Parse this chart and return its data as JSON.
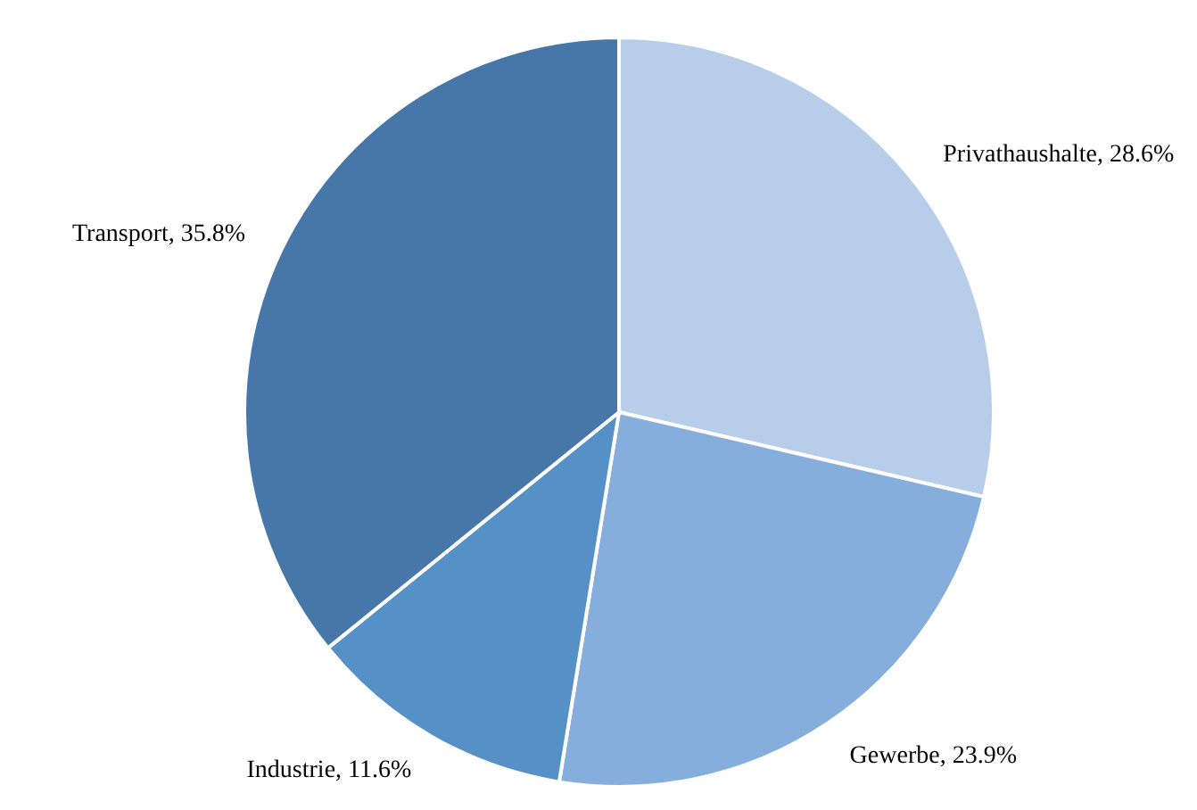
{
  "chart_data": {
    "type": "pie",
    "categories": [
      "Privathaushalte",
      "Gewerbe",
      "Industrie",
      "Transport"
    ],
    "values": [
      28.6,
      23.9,
      11.6,
      35.8
    ],
    "value_labels": [
      "28.6%",
      "23.9%",
      "11.6%",
      "35.8%"
    ],
    "colors": [
      "#b8cde9",
      "#86aedd",
      "#5590c6",
      "#4677a8"
    ]
  }
}
